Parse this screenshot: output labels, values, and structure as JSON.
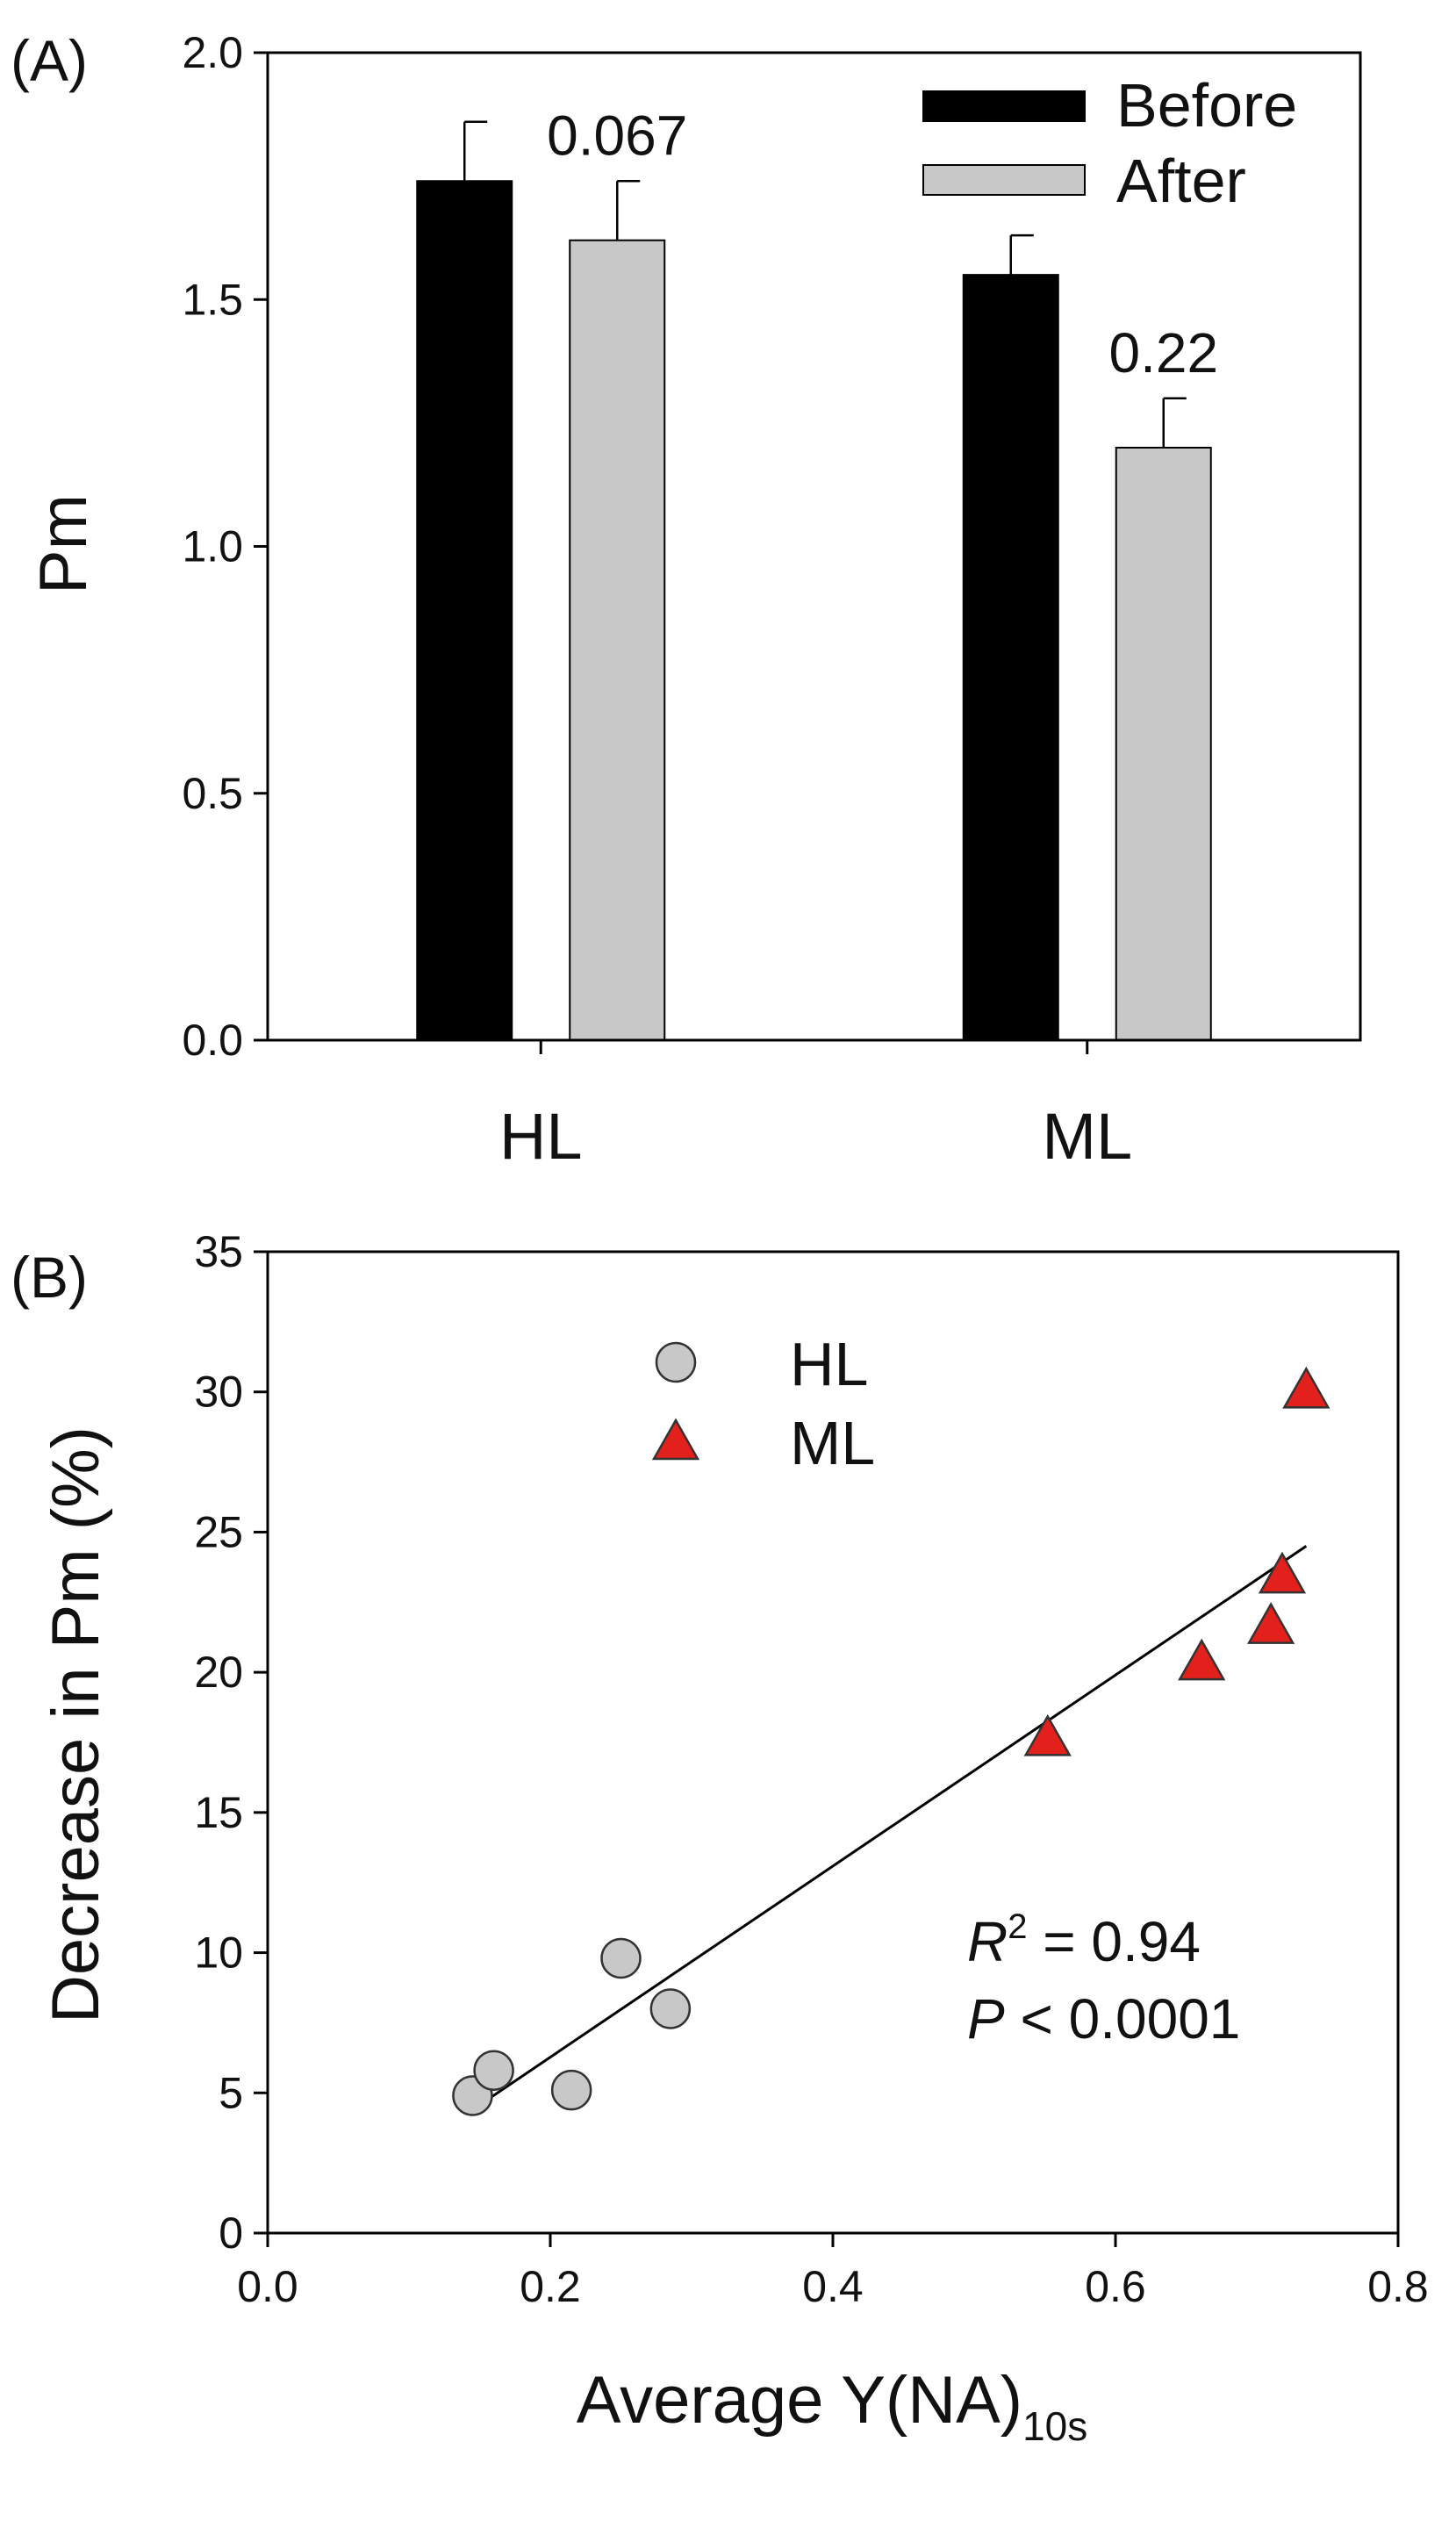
{
  "chart_data": [
    {
      "type": "bar",
      "panel_label": "(A)",
      "ylabel": "Pm",
      "xlabel": "",
      "ylim": [
        0,
        2.0
      ],
      "yticks": [
        "0.0",
        "0.5",
        "1.0",
        "1.5",
        "2.0"
      ],
      "categories": [
        "HL",
        "ML"
      ],
      "series": [
        {
          "name": "Before",
          "color": "#000000",
          "values": [
            1.74,
            1.55
          ],
          "errors": [
            0.12,
            0.08
          ]
        },
        {
          "name": "After",
          "color": "#c8c8c8",
          "values": [
            1.62,
            1.2
          ],
          "errors": [
            0.12,
            0.1
          ]
        }
      ],
      "annotations": [
        "0.067",
        "0.22"
      ],
      "legend_position": "top-right"
    },
    {
      "type": "scatter",
      "panel_label": "(B)",
      "ylabel": "Decrease in Pm (%)",
      "xlabel_main": "Average Y(NA)",
      "xlabel_sub": "10s",
      "xlim": [
        0.0,
        0.8
      ],
      "ylim": [
        0,
        35
      ],
      "xticks": [
        "0.0",
        "0.2",
        "0.4",
        "0.6",
        "0.8"
      ],
      "yticks": [
        "0",
        "5",
        "10",
        "15",
        "20",
        "25",
        "30",
        "35"
      ],
      "series": [
        {
          "name": "HL",
          "marker": "circle",
          "color": "#c8c8c8",
          "x": [
            0.145,
            0.16,
            0.215,
            0.25,
            0.285
          ],
          "y": [
            4.9,
            5.8,
            5.1,
            9.8,
            8.0
          ]
        },
        {
          "name": "ML",
          "marker": "triangle",
          "color": "#e3211c",
          "x": [
            0.552,
            0.661,
            0.71,
            0.718,
            0.735
          ],
          "y": [
            17.6,
            20.3,
            21.6,
            23.4,
            30.0
          ]
        }
      ],
      "fit_line": {
        "x": [
          0.145,
          0.735
        ],
        "y": [
          4.4,
          24.5
        ]
      },
      "stats": {
        "r_symbol": "R",
        "r_sup": "2",
        "r_value": " = 0.94",
        "p_symbol": "P",
        "p_value": " < 0.0001"
      },
      "legend_position": "top-left"
    }
  ]
}
